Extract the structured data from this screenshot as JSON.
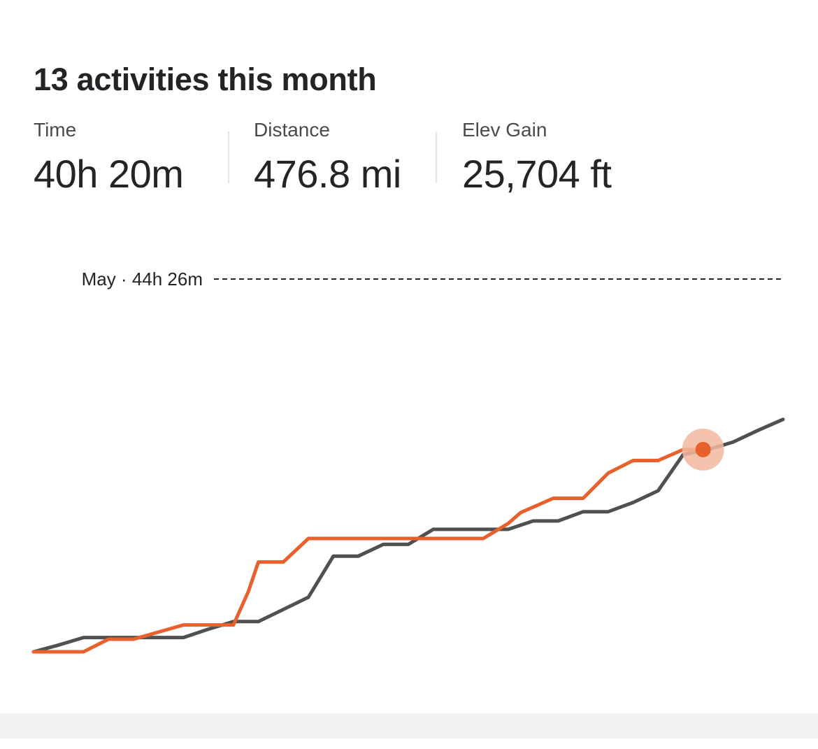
{
  "header": {
    "title": "13 activities this month"
  },
  "stats": [
    {
      "label": "Time",
      "value": "40h 20m"
    },
    {
      "label": "Distance",
      "value": "476.8 mi"
    },
    {
      "label": "Elev Gain",
      "value": "25,704 ft"
    }
  ],
  "chart_data": {
    "type": "line",
    "reference_label": "May · 44h 26m",
    "reference_value_hours": 44.43,
    "ylim": [
      0,
      44.43
    ],
    "xlim": [
      1,
      31
    ],
    "colors": {
      "current": "#e8602c",
      "previous": "#505050",
      "marker_halo": "#f3b89f",
      "reference_line": "#242428"
    },
    "series": [
      {
        "key": "current",
        "x": [
          1,
          3,
          4,
          5,
          7,
          9,
          9.6,
          10,
          11,
          12,
          14,
          18,
          19,
          20,
          20.5,
          21.8,
          23,
          24,
          25,
          26,
          27,
          27.8
        ],
        "values": [
          0,
          0,
          1.5,
          1.5,
          3.2,
          3.2,
          7.2,
          10.7,
          10.7,
          13.5,
          13.5,
          13.5,
          13.5,
          15.3,
          16.6,
          18.3,
          18.3,
          21.3,
          22.8,
          22.8,
          24.1,
          24.1
        ]
      },
      {
        "key": "previous",
        "x": [
          1,
          2,
          3,
          4,
          5,
          6,
          7,
          8,
          9,
          10,
          12,
          13,
          14,
          15,
          16,
          17,
          18,
          20,
          21,
          22,
          23,
          24,
          25,
          26,
          27,
          28,
          29,
          30,
          31
        ],
        "values": [
          0,
          0.8,
          1.7,
          1.7,
          1.7,
          1.7,
          1.7,
          2.7,
          3.6,
          3.6,
          6.5,
          11.4,
          11.4,
          12.8,
          12.8,
          14.6,
          14.6,
          14.6,
          15.6,
          15.6,
          16.7,
          16.7,
          17.8,
          19.2,
          23.5,
          24.1,
          25.0,
          26.4,
          27.7
        ]
      }
    ],
    "current_marker": {
      "x": 27.8,
      "value": 24.1
    },
    "grid": false,
    "legend": "none"
  }
}
